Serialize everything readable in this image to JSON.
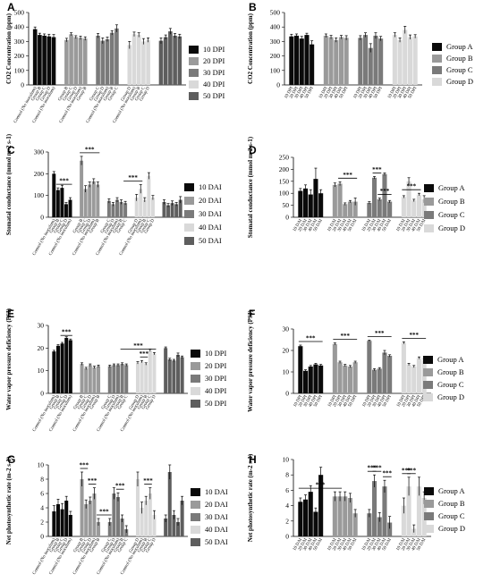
{
  "figure": {
    "colors": {
      "c1": "#0a0a0a",
      "c2": "#9a9a9a",
      "c3": "#7a7a7a",
      "c4": "#d9d9d9",
      "c5": "#5e5e5e"
    }
  },
  "chart_data": [
    {
      "panel": "A",
      "type": "bar",
      "ylabel": "CO2 Concentration (ppm)",
      "ylim": [
        0,
        500
      ],
      "yticks": [
        0,
        100,
        200,
        300,
        400,
        500
      ],
      "groups": [
        "Group A",
        "Group B",
        "Group C",
        "Group D",
        "Group E"
      ],
      "xticks": [
        "Control (No inoculum)",
        "Group B",
        "Group C",
        "Group D",
        "Control (No inoculum)",
        "Group B",
        "Group C",
        "Group D",
        "Control (No inoculum)",
        "Group B",
        "Group C",
        "Group D",
        "Control (No inoculum)",
        "Group B",
        "Group C",
        "Group D",
        "Control (No inoculum)",
        "Group B",
        "Group C",
        "Group D"
      ],
      "legend": [
        "10 DPI",
        "20 DPI",
        "30 DPI",
        "40 DPI",
        "50 DPI"
      ],
      "series": [
        {
          "name": "10 DPI",
          "values": [
            385,
            345,
            340,
            335,
            330
          ],
          "errors": [
            15,
            12,
            12,
            15,
            18
          ]
        },
        {
          "name": "20 DPI",
          "values": [
            310,
            350,
            330,
            325,
            320
          ],
          "errors": [
            12,
            10,
            10,
            12,
            12
          ]
        },
        {
          "name": "30 DPI",
          "values": [
            340,
            305,
            315,
            360,
            390
          ],
          "errors": [
            15,
            20,
            15,
            15,
            25
          ]
        },
        {
          "name": "40 DPI",
          "values": [
            275,
            350,
            345,
            300,
            310
          ],
          "errors": [
            25,
            15,
            15,
            20,
            15
          ]
        },
        {
          "name": "50 DPI",
          "values": [
            305,
            330,
            370,
            340,
            335
          ],
          "errors": [
            20,
            15,
            20,
            15,
            15
          ]
        }
      ]
    },
    {
      "panel": "B",
      "type": "bar",
      "ylabel": "CO2 Concentration (ppm)",
      "ylim": [
        0,
        500
      ],
      "yticks": [
        0,
        100,
        200,
        300,
        400,
        500
      ],
      "xticks": [
        "10 DPI",
        "20 DPI",
        "30 DPI",
        "40 DPI",
        "50 DPI",
        "10 DPI",
        "20 DPI",
        "30 DPI",
        "40 DPI",
        "50 DPI",
        "10 DPI",
        "20 DPI",
        "30 DPI",
        "40 DPI",
        "50 DPI",
        "10 DPI",
        "20 DPI",
        "30 DPI",
        "40 DPI",
        "50 DPI"
      ],
      "legend": [
        "Group A",
        "Group B",
        "Group C",
        "Group D"
      ],
      "series": [
        {
          "name": "Group A",
          "values": [
            335,
            340,
            320,
            345,
            280
          ],
          "errors": [
            15,
            12,
            15,
            12,
            25
          ]
        },
        {
          "name": "Group B",
          "values": [
            340,
            330,
            310,
            330,
            325
          ],
          "errors": [
            12,
            12,
            15,
            12,
            15
          ]
        },
        {
          "name": "Group C",
          "values": [
            325,
            345,
            255,
            340,
            320
          ],
          "errors": [
            15,
            15,
            30,
            20,
            15
          ]
        },
        {
          "name": "Group D",
          "values": [
            345,
            310,
            380,
            330,
            335
          ],
          "errors": [
            15,
            15,
            25,
            15,
            12
          ]
        }
      ]
    },
    {
      "panel": "C",
      "type": "bar",
      "ylabel": "Stomatal conductance (mmol m-2 s-1)",
      "ylim": [
        0,
        300
      ],
      "yticks": [
        0,
        100,
        200,
        300
      ],
      "xticks": [
        "Control (No inoculum)",
        "Group B",
        "Group C",
        "Group D",
        "Control (No inoculum)",
        "Group B",
        "Group C",
        "Group D",
        "Control (No inoculum)",
        "Group B",
        "Group C",
        "Group D",
        "Control (No inoculum)",
        "Group B",
        "Group C",
        "Group D",
        "Control (No inoculum)",
        "Group B",
        "Group C",
        "Group D"
      ],
      "legend": [
        "10 DAI",
        "20 DAI",
        "30 DAI",
        "40 DAI",
        "50 DAI"
      ],
      "series": [
        {
          "name": "10 DAI",
          "values": [
            200,
            125,
            135,
            60,
            80
          ],
          "errors": [
            10,
            10,
            12,
            8,
            10
          ]
        },
        {
          "name": "20 DAI",
          "values": [
            260,
            130,
            150,
            165,
            150
          ],
          "errors": [
            20,
            15,
            12,
            12,
            12
          ]
        },
        {
          "name": "30 DAI",
          "values": [
            75,
            60,
            80,
            70,
            65
          ],
          "errors": [
            10,
            8,
            10,
            10,
            8
          ]
        },
        {
          "name": "40 DAI",
          "values": [
            90,
            130,
            80,
            190,
            90
          ],
          "errors": [
            15,
            20,
            10,
            15,
            10
          ]
        },
        {
          "name": "50 DAI",
          "values": [
            70,
            55,
            65,
            60,
            80
          ],
          "errors": [
            10,
            8,
            10,
            8,
            15
          ]
        }
      ],
      "annotations": [
        "***",
        "***",
        "***"
      ]
    },
    {
      "panel": "D",
      "type": "bar",
      "ylabel": "Stomatal conductance (mmol m-2 s-1)",
      "ylim": [
        0,
        250
      ],
      "yticks": [
        0,
        50,
        100,
        150,
        200,
        250
      ],
      "xticks": [
        "10 DAI",
        "20 DAI",
        "30 DAI",
        "40 DAI",
        "50 DAI",
        "10 DAI",
        "20 DAI",
        "30 DAI",
        "40 DAI",
        "50 DAI",
        "10 DAI",
        "20 DAI",
        "30 DAI",
        "40 DAI",
        "50 DAI",
        "10 DAI",
        "20 DAI",
        "30 DAI",
        "40 DAI",
        "50 DAI"
      ],
      "legend": [
        "Group A",
        "Group B",
        "Group C",
        "Group D"
      ],
      "series": [
        {
          "name": "Group A",
          "values": [
            110,
            120,
            95,
            160,
            100
          ],
          "errors": [
            10,
            15,
            20,
            45,
            15
          ]
        },
        {
          "name": "Group B",
          "values": [
            135,
            140,
            55,
            65,
            65
          ],
          "errors": [
            8,
            8,
            5,
            5,
            15
          ]
        },
        {
          "name": "Group C",
          "values": [
            60,
            165,
            75,
            180,
            65
          ],
          "errors": [
            5,
            5,
            5,
            5,
            5
          ]
        },
        {
          "name": "Group D",
          "values": [
            85,
            150,
            70,
            95,
            75
          ],
          "errors": [
            5,
            15,
            5,
            5,
            15
          ]
        }
      ],
      "annotations": [
        "***",
        "***",
        "***",
        "***"
      ]
    },
    {
      "panel": "E",
      "type": "bar",
      "ylabel": "Water vapor pressure deficiency (PSI)",
      "ylim": [
        0,
        30
      ],
      "yticks": [
        0,
        10,
        20,
        30
      ],
      "xticks": [
        "Control (No inoculum)",
        "Group B",
        "Group C",
        "Group D",
        "Control (No inoculum)",
        "Group B",
        "Group C",
        "Group D",
        "Control (No inoculum)",
        "Group B",
        "Group C",
        "Group D",
        "Control (No inoculum)",
        "Group B",
        "Group C",
        "Group D",
        "Control (No inoculum)",
        "Group B",
        "Group C",
        "Group D"
      ],
      "legend": [
        "10 DPI",
        "20 DPI",
        "30 DPI",
        "40 DPI",
        "50 DPI"
      ],
      "series": [
        {
          "name": "10 DPI",
          "values": [
            18.5,
            21,
            22,
            24.5,
            23.5
          ],
          "errors": [
            0.5,
            0.5,
            0.5,
            0.5,
            0.5
          ]
        },
        {
          "name": "20 DPI",
          "values": [
            13,
            11,
            12.5,
            11.5,
            12
          ],
          "errors": [
            0.5,
            0.5,
            0.5,
            0.5,
            0.5
          ]
        },
        {
          "name": "30 DPI",
          "values": [
            12,
            12.5,
            12.5,
            13,
            12.5
          ],
          "errors": [
            0.5,
            0.5,
            0.5,
            0.5,
            0.5
          ]
        },
        {
          "name": "40 DPI",
          "values": [
            13.5,
            14,
            13,
            19,
            17.5
          ],
          "errors": [
            0.5,
            0.5,
            0.5,
            0.5,
            0.5
          ]
        },
        {
          "name": "50 DPI",
          "values": [
            20,
            15,
            14.5,
            17,
            16
          ],
          "errors": [
            0.5,
            0.5,
            0.5,
            0.8,
            0.5
          ]
        }
      ],
      "annotations": [
        "***",
        "***",
        "***"
      ]
    },
    {
      "panel": "F",
      "type": "bar",
      "ylabel": "Water vapor pressure deficiency (PSI)",
      "ylim": [
        0,
        30
      ],
      "yticks": [
        0,
        10,
        20,
        30
      ],
      "xticks": [
        "10 DPI",
        "20 DPI",
        "30 DPI",
        "40 DPI",
        "50 DPI",
        "10 DPI",
        "20 DPI",
        "30 DPI",
        "40 DPI",
        "50 DPI",
        "10 DPI",
        "20 DPI",
        "30 DPI",
        "40 DPI",
        "50 DPI",
        "10 DPI",
        "20 DPI",
        "30 DPI",
        "40 DPI",
        "50 DPI"
      ],
      "legend": [
        "Group A",
        "Group B",
        "Group C",
        "Group D"
      ],
      "series": [
        {
          "name": "Group A",
          "values": [
            22,
            10.5,
            12.5,
            13.5,
            13
          ],
          "errors": [
            0.5,
            0.5,
            0.5,
            0.5,
            0.5
          ]
        },
        {
          "name": "Group B",
          "values": [
            23,
            14.5,
            13,
            12.5,
            14.5
          ],
          "errors": [
            0.5,
            0.5,
            0.5,
            0.5,
            0.5
          ]
        },
        {
          "name": "Group C",
          "values": [
            24.5,
            11,
            11.5,
            19,
            17.5
          ],
          "errors": [
            0.3,
            0.5,
            0.5,
            1,
            0.5
          ]
        },
        {
          "name": "Group D",
          "values": [
            23.5,
            13.5,
            12.5,
            16.5,
            15.5
          ],
          "errors": [
            0.5,
            0.5,
            0.5,
            0.5,
            0.5
          ]
        }
      ],
      "annotations": [
        "***",
        "***",
        "***",
        "***"
      ]
    },
    {
      "panel": "G",
      "type": "bar",
      "ylabel": "Net photosynthetic rate (m-2 s-1)",
      "ylim": [
        0,
        10
      ],
      "yticks": [
        0,
        2,
        4,
        6,
        8,
        10
      ],
      "xticks": [
        "Control (No inoculum)",
        "Group B",
        "Group C",
        "Group D",
        "Control (No inoculum)",
        "Group B",
        "Group C",
        "Group D",
        "Control (No inoculum)",
        "Group B",
        "Group C",
        "Group D",
        "Control (No inoculum)",
        "Group B",
        "Group C",
        "Group D",
        "Control (No inoculum)",
        "Group B",
        "Group C",
        "Group D"
      ],
      "legend": [
        "10 DAI",
        "20 DAI",
        "30 DAI",
        "40 DAI",
        "50 DAI"
      ],
      "series": [
        {
          "name": "10 DAI",
          "values": [
            3.5,
            4.5,
            3.8,
            5.0,
            3.0
          ],
          "errors": [
            0.8,
            0.7,
            0.8,
            0.6,
            0.5
          ]
        },
        {
          "name": "20 DAI",
          "values": [
            8.0,
            4.5,
            5.0,
            6.0,
            2.0
          ],
          "errors": [
            1.0,
            0.6,
            0.5,
            0.8,
            0.5
          ]
        },
        {
          "name": "30 DAI",
          "values": [
            2.0,
            6.0,
            5.5,
            2.5,
            1.0
          ],
          "errors": [
            0.5,
            0.8,
            0.6,
            0.5,
            0.5
          ]
        },
        {
          "name": "40 DAI",
          "values": [
            8.0,
            4.0,
            5.0,
            6.0,
            3.0
          ],
          "errors": [
            1.0,
            0.8,
            0.6,
            0.8,
            0.6
          ]
        },
        {
          "name": "50 DAI",
          "values": [
            2.5,
            9.0,
            3.0,
            2.0,
            5.0
          ],
          "errors": [
            0.5,
            1.0,
            0.6,
            0.5,
            0.6
          ]
        }
      ],
      "annotations": [
        "***",
        "***",
        "***",
        "***",
        "***"
      ]
    },
    {
      "panel": "H",
      "type": "bar",
      "ylabel": "Net photosynthetic rate (m-2 s-1)",
      "ylim": [
        0,
        10
      ],
      "yticks": [
        0,
        2,
        4,
        6,
        8,
        10
      ],
      "xticks": [
        "10 DAI",
        "20 DAI",
        "30 DAI",
        "40 DAI",
        "50 DAI",
        "10 DAI",
        "20 DAI",
        "30 DAI",
        "40 DAI",
        "50 DAI",
        "10 DAI",
        "20 DAI",
        "30 DAI",
        "40 DAI",
        "50 DAI",
        "10 DAI",
        "20 DAI",
        "30 DAI",
        "40 DAI",
        "50 DAI"
      ],
      "legend": [
        "Group A",
        "Group B",
        "Group C",
        "Group D"
      ],
      "series": [
        {
          "name": "Group A",
          "values": [
            4.5,
            4.8,
            5.8,
            3.2,
            8.0
          ],
          "errors": [
            0.5,
            0.6,
            0.8,
            0.5,
            1.0
          ]
        },
        {
          "name": "Group B",
          "values": [
            5.2,
            5.2,
            5.2,
            5.0,
            3.0
          ],
          "errors": [
            0.6,
            0.6,
            0.6,
            0.6,
            0.5
          ]
        },
        {
          "name": "Group C",
          "values": [
            3.0,
            7.2,
            2.5,
            6.5,
            1.8
          ],
          "errors": [
            0.5,
            0.8,
            0.6,
            0.8,
            0.8
          ]
        },
        {
          "name": "Group D",
          "values": [
            4.0,
            6.5,
            1.0,
            6.5,
            5.0
          ],
          "errors": [
            1.0,
            1.2,
            0.5,
            1.2,
            0.8
          ]
        }
      ],
      "annotations": [
        "***",
        "***",
        "***",
        "***",
        "***",
        "***"
      ]
    }
  ]
}
